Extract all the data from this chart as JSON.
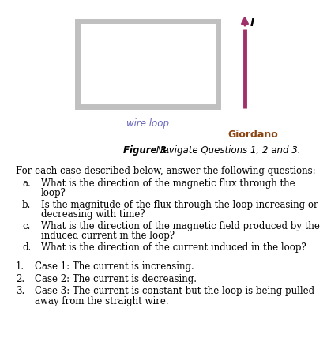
{
  "background_color": "#ffffff",
  "figure_caption_bold": "Figure 3.",
  "figure_caption_italic": " Navigate Questions 1, 2 and 3.",
  "wire_loop_label": "wire loop",
  "giordano_label": "Giordano",
  "current_label": "I",
  "intro_text": "For each case described below, answer the following questions:",
  "questions": [
    {
      "letter": "a.",
      "line1": "What is the direction of the magnetic flux through the",
      "line2": "loop?"
    },
    {
      "letter": "b.",
      "line1": "Is the magnitude of the flux through the loop increasing or",
      "line2": "decreasing with time?"
    },
    {
      "letter": "c.",
      "line1": "What is the direction of the magnetic field produced by the",
      "line2": "induced current in the loop?"
    },
    {
      "letter": "d.",
      "line1": "What is the direction of the current induced in the loop?",
      "line2": ""
    }
  ],
  "cases": [
    {
      "number": "1.",
      "line1": "Case 1: The current is increasing.",
      "line2": ""
    },
    {
      "number": "2.",
      "line1": "Case 2: The current is decreasing.",
      "line2": ""
    },
    {
      "number": "3.",
      "line1": "Case 3: The current is constant but the loop is being pulled",
      "line2": "away from the straight wire."
    }
  ],
  "loop_color": "#c0c0c0",
  "loop_linewidth": 5,
  "wire_color": "#a0306a",
  "wire_loop_label_color": "#6666bb",
  "giordano_color": "#8b4513",
  "font_size": 8.5
}
